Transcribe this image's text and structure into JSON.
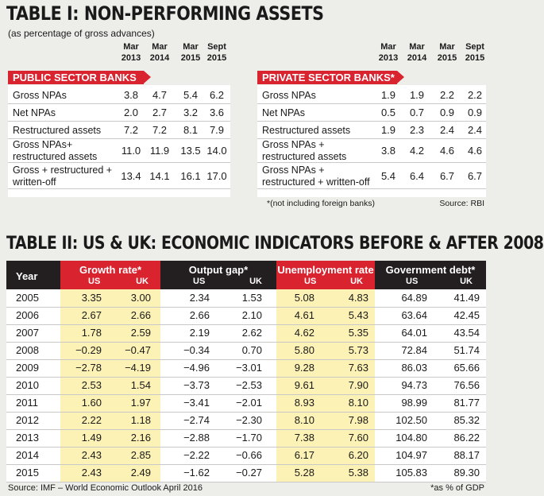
{
  "table1": {
    "title": "TABLE I:  NON-PERFORMING ASSETS",
    "subtitle": "(as percentage of gross advances)",
    "columns": [
      [
        "Mar",
        "2013"
      ],
      [
        "Mar",
        "2014"
      ],
      [
        "Mar",
        "2015"
      ],
      [
        "Sept",
        "2015"
      ]
    ],
    "public": {
      "banner": "PUBLIC SECTOR BANKS",
      "rows": [
        {
          "label": [
            "Gross NPAs"
          ],
          "values": [
            "3.8",
            "4.7",
            "5.4",
            "6.2"
          ]
        },
        {
          "label": [
            "Net NPAs"
          ],
          "values": [
            "2.0",
            "2.7",
            "3.2",
            "3.6"
          ]
        },
        {
          "label": [
            "Restructured assets"
          ],
          "values": [
            "7.2",
            "7.2",
            "8.1",
            "7.9"
          ]
        },
        {
          "label": [
            "Gross NPAs+",
            "restructured assets"
          ],
          "values": [
            "11.0",
            "11.9",
            "13.5",
            "14.0"
          ]
        },
        {
          "label": [
            "Gross + restructured +",
            "written-off"
          ],
          "values": [
            "13.4",
            "14.1",
            "16.1",
            "17.0"
          ]
        }
      ]
    },
    "private": {
      "banner": "PRIVATE SECTOR BANKS*",
      "rows": [
        {
          "label": [
            "Gross NPAs"
          ],
          "values": [
            "1.9",
            "1.9",
            "2.2",
            "2.2"
          ]
        },
        {
          "label": [
            "Net NPAs"
          ],
          "values": [
            "0.5",
            "0.7",
            "0.9",
            "0.9"
          ]
        },
        {
          "label": [
            "Restructured assets"
          ],
          "values": [
            "1.9",
            "2.3",
            "2.4",
            "2.4"
          ]
        },
        {
          "label": [
            "Gross NPAs +",
            "restructured assets"
          ],
          "values": [
            "3.8",
            "4.2",
            "4.6",
            "4.6"
          ]
        },
        {
          "label": [
            "Gross NPAs +",
            "restructured + written-off"
          ],
          "values": [
            "5.4",
            "6.4",
            "6.7",
            "6.7"
          ]
        }
      ]
    },
    "footnote": "*(not including foreign banks)",
    "source": "Source: RBI"
  },
  "table2": {
    "title": "TABLE II:  US & UK: ECONOMIC INDICATORS BEFORE & AFTER 2008",
    "year_header": "Year",
    "groups": [
      {
        "name": "Growth rate*",
        "sub": [
          "US",
          "UK"
        ]
      },
      {
        "name": "Output gap*",
        "sub": [
          "US",
          "UK"
        ]
      },
      {
        "name": "Unemployment rate",
        "sub": [
          "US",
          "UK"
        ]
      },
      {
        "name": "Government debt*",
        "sub": [
          "US",
          "UK"
        ]
      }
    ],
    "rows": [
      [
        "2005",
        "3.35",
        "3.00",
        "2.34",
        "1.53",
        "5.08",
        "4.83",
        "64.89",
        "41.49"
      ],
      [
        "2006",
        "2.67",
        "2.66",
        "2.66",
        "2.10",
        "4.61",
        "5.43",
        "63.64",
        "42.45"
      ],
      [
        "2007",
        "1.78",
        "2.59",
        "2.19",
        "2.62",
        "4.62",
        "5.35",
        "64.01",
        "43.54"
      ],
      [
        "2008",
        "−0.29",
        "−0.47",
        "−0.34",
        "0.70",
        "5.80",
        "5.73",
        "72.84",
        "51.74"
      ],
      [
        "2009",
        "−2.78",
        "−4.19",
        "−4.96",
        "−3.01",
        "9.28",
        "7.63",
        "86.03",
        "65.66"
      ],
      [
        "2010",
        "2.53",
        "1.54",
        "−3.73",
        "−2.53",
        "9.61",
        "7.90",
        "94.73",
        "76.56"
      ],
      [
        "2011",
        "1.60",
        "1.97",
        "−3.41",
        "−2.01",
        "8.93",
        "8.10",
        "98.99",
        "81.77"
      ],
      [
        "2012",
        "2.22",
        "1.18",
        "−2.74",
        "−2.30",
        "8.10",
        "7.98",
        "102.50",
        "85.32"
      ],
      [
        "2013",
        "1.49",
        "2.16",
        "−2.88",
        "−1.70",
        "7.38",
        "7.60",
        "104.80",
        "86.22"
      ],
      [
        "2014",
        "2.43",
        "2.85",
        "−2.22",
        "−0.66",
        "6.17",
        "6.20",
        "104.97",
        "88.17"
      ],
      [
        "2015",
        "2.43",
        "2.49",
        "−1.62",
        "−0.27",
        "5.28",
        "5.38",
        "105.83",
        "89.30"
      ]
    ],
    "source": "Source: IMF – World Economic Outlook April 2016",
    "footnote": "*as % of GDP"
  },
  "colors": {
    "accent": "#d9232f",
    "dark": "#231f20",
    "highlight": "#fdf2b5"
  }
}
